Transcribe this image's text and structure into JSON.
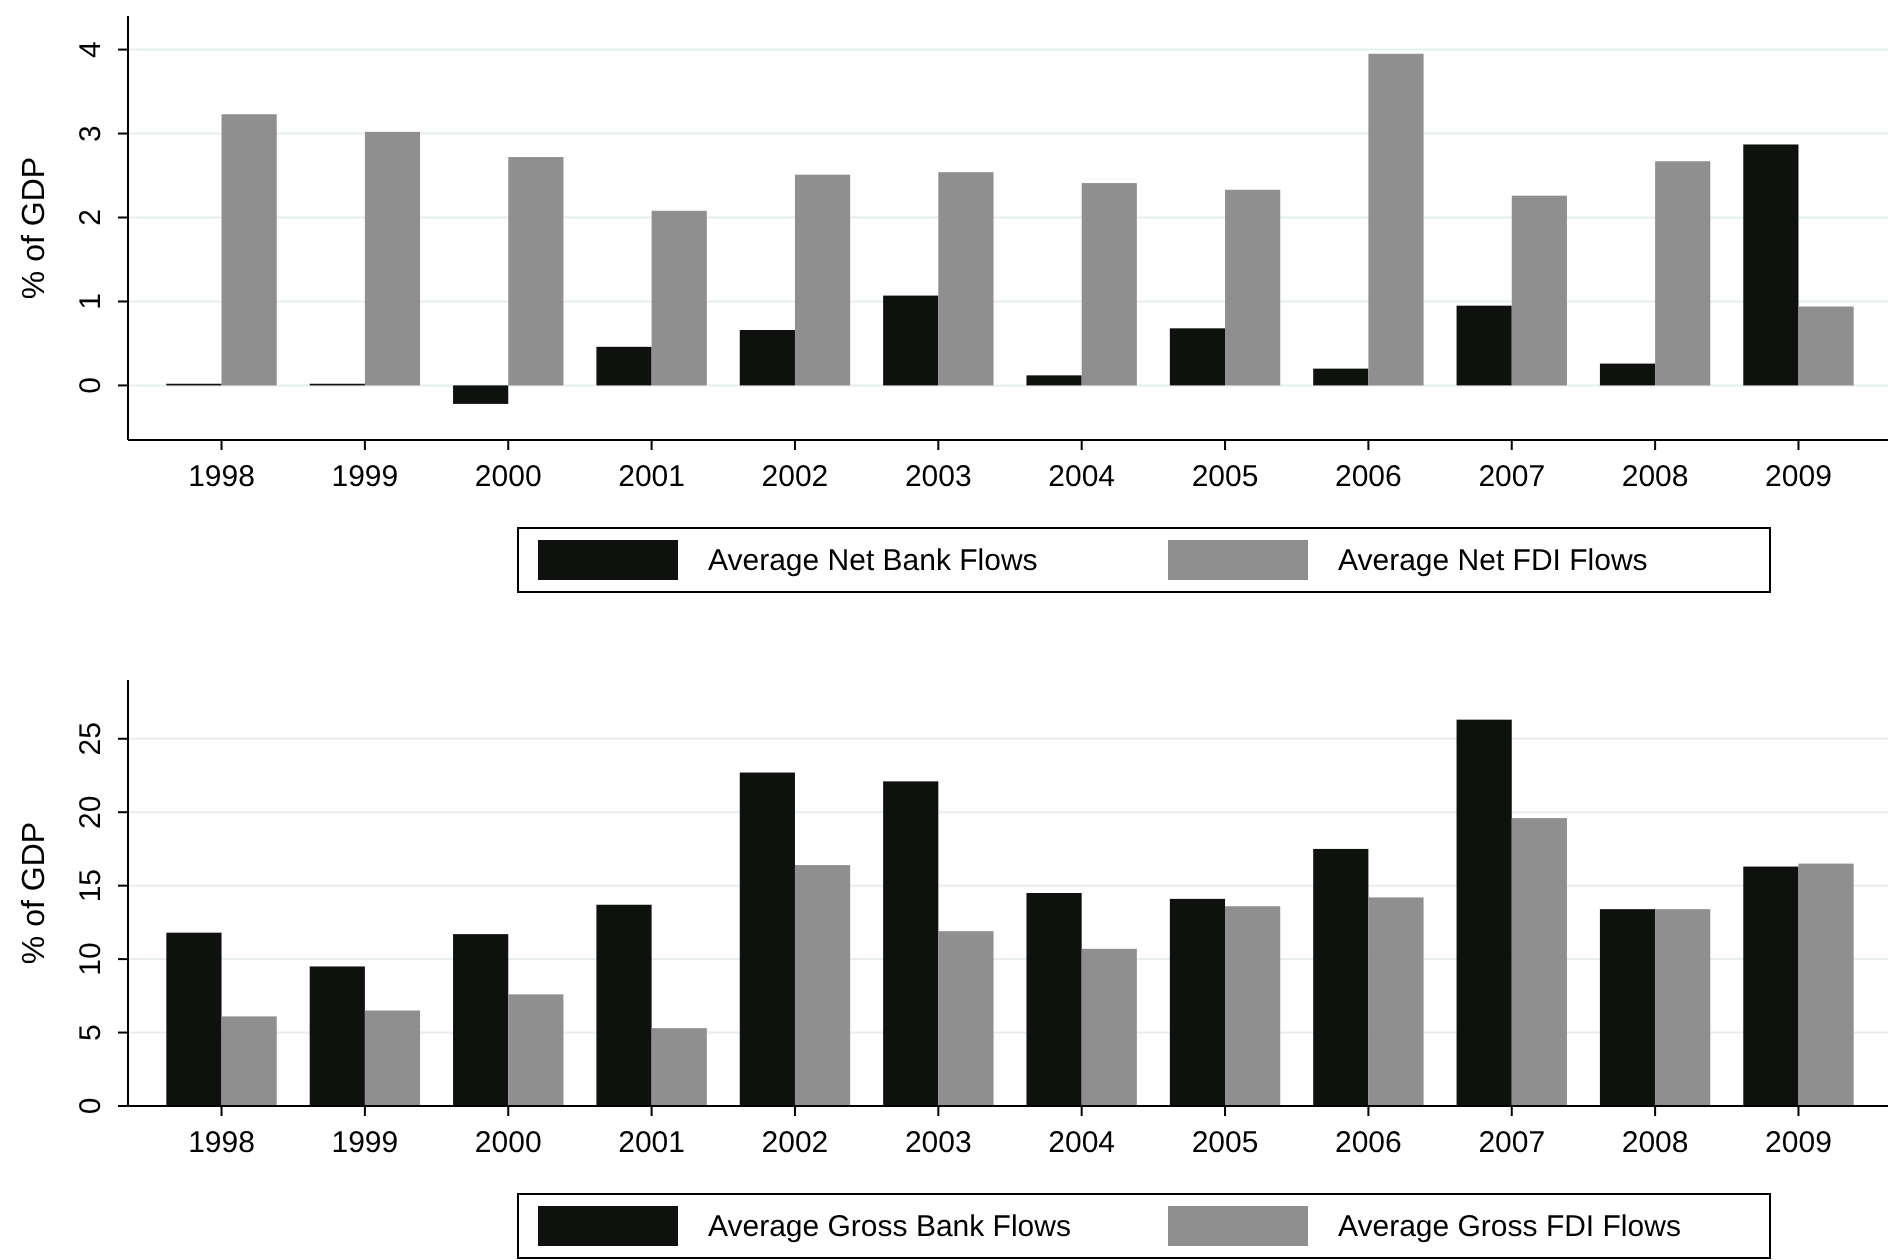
{
  "chart_data": [
    {
      "type": "bar",
      "ylabel": "% of GDP",
      "categories": [
        "1998",
        "1999",
        "2000",
        "2001",
        "2002",
        "2003",
        "2004",
        "2005",
        "2006",
        "2007",
        "2008",
        "2009"
      ],
      "series": [
        {
          "name": "Average Net Bank Flows",
          "color": "#0f110f",
          "values": [
            0.02,
            0.02,
            -0.22,
            0.46,
            0.66,
            1.07,
            0.12,
            0.68,
            0.2,
            0.95,
            0.26,
            2.87
          ]
        },
        {
          "name": "Average Net FDI Flows",
          "color": "#8f8f8f",
          "values": [
            3.23,
            3.02,
            2.72,
            2.08,
            2.51,
            2.54,
            2.41,
            2.33,
            3.95,
            2.26,
            2.67,
            0.94
          ]
        }
      ],
      "ylim": [
        -0.65,
        4.4
      ],
      "yticks": [
        0,
        1,
        2,
        3,
        4
      ],
      "grid": "y",
      "legend": "bottom"
    },
    {
      "type": "bar",
      "ylabel": "% of GDP",
      "categories": [
        "1998",
        "1999",
        "2000",
        "2001",
        "2002",
        "2003",
        "2004",
        "2005",
        "2006",
        "2007",
        "2008",
        "2009"
      ],
      "series": [
        {
          "name": "Average Gross Bank Flows",
          "color": "#0f110f",
          "values": [
            11.8,
            9.5,
            11.7,
            13.7,
            22.7,
            22.1,
            14.5,
            14.1,
            17.5,
            26.3,
            13.4,
            16.3
          ]
        },
        {
          "name": "Average Gross FDI Flows",
          "color": "#8f8f8f",
          "values": [
            6.1,
            6.5,
            7.6,
            5.3,
            16.4,
            11.9,
            10.7,
            13.6,
            14.2,
            19.6,
            13.4,
            16.5
          ]
        }
      ],
      "ylim": [
        0,
        29
      ],
      "yticks": [
        0,
        5,
        10,
        15,
        20,
        25
      ],
      "grid": "y",
      "legend": "bottom"
    }
  ]
}
